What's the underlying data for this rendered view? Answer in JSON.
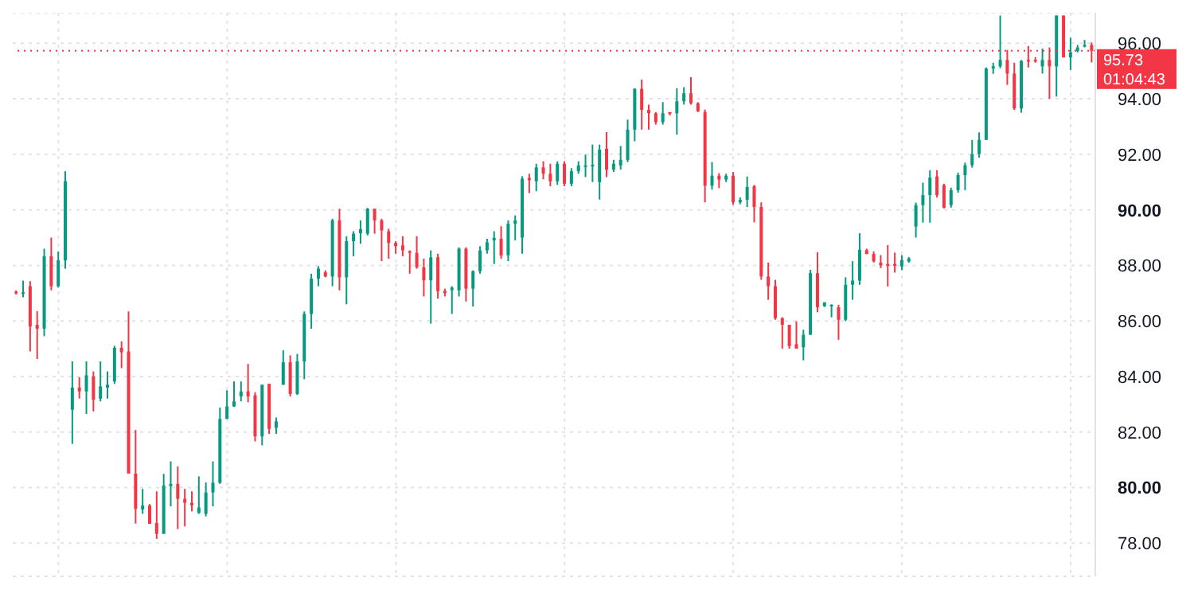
{
  "chart_data": {
    "type": "candlestick",
    "categories": [
      null,
      null,
      null,
      null,
      null,
      null,
      null,
      null,
      null,
      null,
      null,
      null,
      null,
      null,
      null,
      null,
      null,
      null,
      null,
      null,
      null,
      null,
      null,
      null,
      null,
      null,
      null,
      null,
      null,
      null,
      null,
      null,
      null,
      null,
      null,
      null,
      null,
      null,
      null,
      null,
      null,
      null,
      null,
      null,
      null,
      null,
      null,
      null,
      null,
      null,
      null,
      null,
      null,
      null,
      null,
      null,
      null,
      null,
      null,
      null,
      null,
      null,
      null,
      null,
      null,
      null,
      null,
      null,
      null,
      null,
      null,
      null,
      null,
      null,
      null,
      null,
      null,
      null,
      null,
      null,
      null,
      null,
      null,
      null,
      null,
      null,
      null,
      null,
      null,
      null,
      null,
      null,
      null,
      null,
      null,
      null,
      null,
      null,
      null,
      null,
      null,
      null,
      null,
      null,
      null,
      null,
      null,
      null,
      null,
      null,
      null,
      null,
      null,
      null,
      null,
      null,
      null,
      null,
      null,
      null,
      null,
      null,
      null,
      null,
      null,
      null,
      null,
      null,
      null,
      null,
      null,
      null,
      null,
      null,
      null,
      null,
      null,
      null,
      null,
      null,
      null,
      null,
      null,
      null,
      null,
      null,
      null,
      null,
      null,
      null,
      null,
      null,
      null,
      null
    ],
    "ohlc": [
      [
        87.05,
        87.1,
        86.95,
        87.0
      ],
      [
        86.97,
        87.45,
        86.85,
        87.03
      ],
      [
        87.25,
        87.43,
        84.9,
        85.8
      ],
      [
        85.86,
        86.35,
        84.63,
        85.72
      ],
      [
        85.72,
        88.6,
        85.45,
        88.33
      ],
      [
        88.33,
        89.0,
        87.1,
        87.25
      ],
      [
        87.25,
        88.5,
        87.2,
        88.18
      ],
      [
        88.18,
        91.39,
        87.88,
        91.03
      ],
      [
        82.8,
        84.54,
        81.57,
        83.6
      ],
      [
        83.6,
        83.97,
        83.2,
        83.46
      ],
      [
        83.46,
        84.54,
        82.65,
        84.04
      ],
      [
        84.0,
        84.18,
        82.74,
        83.16
      ],
      [
        83.2,
        84.54,
        83.1,
        83.64
      ],
      [
        83.6,
        84.18,
        83.2,
        83.7
      ],
      [
        83.82,
        85.1,
        83.73,
        85.03
      ],
      [
        85.03,
        85.26,
        84.3,
        84.87
      ],
      [
        84.9,
        86.34,
        80.5,
        80.5
      ],
      [
        80.5,
        82.07,
        78.7,
        79.23
      ],
      [
        79.21,
        79.95,
        79.05,
        79.35
      ],
      [
        79.35,
        79.4,
        78.69,
        78.69
      ],
      [
        78.72,
        79.86,
        78.15,
        78.33
      ],
      [
        78.33,
        80.49,
        78.33,
        80.07
      ],
      [
        80.05,
        80.94,
        79.32,
        80.13
      ],
      [
        80.13,
        80.76,
        78.5,
        79.59
      ],
      [
        79.59,
        79.95,
        78.6,
        79.45
      ],
      [
        79.45,
        79.86,
        79.14,
        79.36
      ],
      [
        79.08,
        80.4,
        79.05,
        79.28
      ],
      [
        79.05,
        80.18,
        78.96,
        79.82
      ],
      [
        79.82,
        80.94,
        79.32,
        80.17
      ],
      [
        80.17,
        82.88,
        80.13,
        82.47
      ],
      [
        82.47,
        83.5,
        82.47,
        82.92
      ],
      [
        82.92,
        83.82,
        82.9,
        83.1
      ],
      [
        83.28,
        83.82,
        83.1,
        83.46
      ],
      [
        83.46,
        84.45,
        83.07,
        83.28
      ],
      [
        83.32,
        83.43,
        81.66,
        81.84
      ],
      [
        81.84,
        83.7,
        81.52,
        83.7
      ],
      [
        83.73,
        83.73,
        81.93,
        82.11
      ],
      [
        82.15,
        82.52,
        81.93,
        82.38
      ],
      [
        83.7,
        84.94,
        83.7,
        84.51
      ],
      [
        84.51,
        84.76,
        83.28,
        83.37
      ],
      [
        83.37,
        84.81,
        83.33,
        84.54
      ],
      [
        84.54,
        86.34,
        83.9,
        86.25
      ],
      [
        86.25,
        87.7,
        85.72,
        87.52
      ],
      [
        87.52,
        87.97,
        87.25,
        87.88
      ],
      [
        87.75,
        87.82,
        87.57,
        87.6
      ],
      [
        87.6,
        89.68,
        87.25,
        89.62
      ],
      [
        89.62,
        90.04,
        87.1,
        87.57
      ],
      [
        87.57,
        89.05,
        86.6,
        88.87
      ],
      [
        88.87,
        89.23,
        88.33,
        89.14
      ],
      [
        89.16,
        89.62,
        88.78,
        89.3
      ],
      [
        89.14,
        90.07,
        89.08,
        90.04
      ],
      [
        90.04,
        90.04,
        89.14,
        89.62
      ],
      [
        89.62,
        89.68,
        88.15,
        89.26
      ],
      [
        89.23,
        89.32,
        88.24,
        88.81
      ],
      [
        88.81,
        88.87,
        88.42,
        88.69
      ],
      [
        88.72,
        89.05,
        88.33,
        88.54
      ],
      [
        88.51,
        88.54,
        87.7,
        88.45
      ],
      [
        88.45,
        89.05,
        87.88,
        87.93
      ],
      [
        87.93,
        88.24,
        86.88,
        87.46
      ],
      [
        87.46,
        88.54,
        85.9,
        88.29
      ],
      [
        88.29,
        88.42,
        86.8,
        87.07
      ],
      [
        87.08,
        87.16,
        86.88,
        87.0
      ],
      [
        87.1,
        87.25,
        86.25,
        87.2
      ],
      [
        87.1,
        88.65,
        86.88,
        88.6
      ],
      [
        88.6,
        88.65,
        86.7,
        87.16
      ],
      [
        87.16,
        87.82,
        86.52,
        87.79
      ],
      [
        87.79,
        88.69,
        87.7,
        88.54
      ],
      [
        88.54,
        88.96,
        88.42,
        88.83
      ],
      [
        88.9,
        89.23,
        88.05,
        88.99
      ],
      [
        88.96,
        89.41,
        88.24,
        88.36
      ],
      [
        88.36,
        89.62,
        88.15,
        89.5
      ],
      [
        89.5,
        89.8,
        88.9,
        89.62
      ],
      [
        89.0,
        91.21,
        88.42,
        91.12
      ],
      [
        91.15,
        91.3,
        90.6,
        91.07
      ],
      [
        91.03,
        91.66,
        90.67,
        91.53
      ],
      [
        91.53,
        91.75,
        91.1,
        91.3
      ],
      [
        91.3,
        91.66,
        90.85,
        91.03
      ],
      [
        91.03,
        91.75,
        90.9,
        91.66
      ],
      [
        91.66,
        91.75,
        90.85,
        90.94
      ],
      [
        90.94,
        91.5,
        90.85,
        91.39
      ],
      [
        91.39,
        91.75,
        91.3,
        91.6
      ],
      [
        91.55,
        91.99,
        91.18,
        91.6
      ],
      [
        91.57,
        92.35,
        91.0,
        91.62
      ],
      [
        91.0,
        92.35,
        90.37,
        92.17
      ],
      [
        92.2,
        92.8,
        91.18,
        91.45
      ],
      [
        91.45,
        91.8,
        91.36,
        91.66
      ],
      [
        91.6,
        92.3,
        91.45,
        91.8
      ],
      [
        91.8,
        93.25,
        91.72,
        92.89
      ],
      [
        92.89,
        94.38,
        92.47,
        94.36
      ],
      [
        94.36,
        94.69,
        92.89,
        93.6
      ],
      [
        93.6,
        93.79,
        92.89,
        93.48
      ],
      [
        93.48,
        93.52,
        93.07,
        93.16
      ],
      [
        93.16,
        93.88,
        93.07,
        93.48
      ],
      [
        93.52,
        93.52,
        93.4,
        93.46
      ],
      [
        93.48,
        94.38,
        92.71,
        93.91
      ],
      [
        93.91,
        94.42,
        93.79,
        94.2
      ],
      [
        94.2,
        94.78,
        93.79,
        93.84
      ],
      [
        93.84,
        93.88,
        93.52,
        93.55
      ],
      [
        93.52,
        93.61,
        90.27,
        90.87
      ],
      [
        90.87,
        91.72,
        90.73,
        91.23
      ],
      [
        91.23,
        91.32,
        90.78,
        91.09
      ],
      [
        91.09,
        91.3,
        91.0,
        91.23
      ],
      [
        91.23,
        91.36,
        90.18,
        90.27
      ],
      [
        90.27,
        90.45,
        90.2,
        90.36
      ],
      [
        90.36,
        91.2,
        90.1,
        90.82
      ],
      [
        90.85,
        90.9,
        89.55,
        90.1
      ],
      [
        90.1,
        90.27,
        87.48,
        87.6
      ],
      [
        87.6,
        88.1,
        86.76,
        87.25
      ],
      [
        87.25,
        87.48,
        86.04,
        86.1
      ],
      [
        86.1,
        86.13,
        85.0,
        85.86
      ],
      [
        85.86,
        85.86,
        85.0,
        85.09
      ],
      [
        85.16,
        85.99,
        85.0,
        85.0
      ],
      [
        85.05,
        85.68,
        84.58,
        85.5
      ],
      [
        85.5,
        87.84,
        85.5,
        87.72
      ],
      [
        87.72,
        88.47,
        86.31,
        86.49
      ],
      [
        86.53,
        86.67,
        86.5,
        86.67
      ],
      [
        86.53,
        86.6,
        86.13,
        86.58
      ],
      [
        86.49,
        86.58,
        85.32,
        86.04
      ],
      [
        86.04,
        87.57,
        85.99,
        87.3
      ],
      [
        87.3,
        88.15,
        86.76,
        87.45
      ],
      [
        87.45,
        89.16,
        87.3,
        88.56
      ],
      [
        88.55,
        88.6,
        88.4,
        88.41
      ],
      [
        88.41,
        88.5,
        88.1,
        88.15
      ],
      [
        88.1,
        88.37,
        87.9,
        88.0
      ],
      [
        88.05,
        88.73,
        87.24,
        87.98
      ],
      [
        88.05,
        88.46,
        87.74,
        87.98
      ],
      [
        87.96,
        88.37,
        87.83,
        88.19
      ],
      [
        88.14,
        88.3,
        88.1,
        88.25
      ],
      [
        89.4,
        90.26,
        89.0,
        90.17
      ],
      [
        90.17,
        90.98,
        89.54,
        90.53
      ],
      [
        90.53,
        91.43,
        89.54,
        91.16
      ],
      [
        91.2,
        91.43,
        90.44,
        90.53
      ],
      [
        90.89,
        90.94,
        90.05,
        90.08
      ],
      [
        90.17,
        90.8,
        90.08,
        90.71
      ],
      [
        90.71,
        91.34,
        90.62,
        91.25
      ],
      [
        91.25,
        91.7,
        90.71,
        91.61
      ],
      [
        91.61,
        92.52,
        91.52,
        92.01
      ],
      [
        92.01,
        92.79,
        91.88,
        92.52
      ],
      [
        92.52,
        95.13,
        92.52,
        95.09
      ],
      [
        95.09,
        95.3,
        94.9,
        95.17
      ],
      [
        95.17,
        97.0,
        95.1,
        95.4
      ],
      [
        95.4,
        95.76,
        94.5,
        94.91
      ],
      [
        94.91,
        95.3,
        93.6,
        93.65
      ],
      [
        93.65,
        95.4,
        93.5,
        95.36
      ],
      [
        95.4,
        95.9,
        95.13,
        95.36
      ],
      [
        95.4,
        95.5,
        95.3,
        95.36
      ],
      [
        95.17,
        95.81,
        94.91,
        95.4
      ],
      [
        95.4,
        95.85,
        94.0,
        95.17
      ],
      [
        95.17,
        97.0,
        94.08,
        97.0
      ],
      [
        97.0,
        97.0,
        95.49,
        95.49
      ],
      [
        95.49,
        96.2,
        95.04,
        95.67
      ],
      [
        95.72,
        95.94,
        95.67,
        95.85
      ],
      [
        95.89,
        96.12,
        95.85,
        95.94
      ],
      [
        95.94,
        96.03,
        95.31,
        95.73
      ]
    ],
    "colors": [
      "#f23645",
      "#089981",
      "#f23645",
      "#f23645",
      "#089981",
      "#f23645",
      "#089981",
      "#089981",
      "#089981",
      "#f23645",
      "#089981",
      "#f23645",
      "#089981",
      "#089981",
      "#089981",
      "#f23645",
      "#f23645",
      "#f23645",
      "#089981",
      "#f23645",
      "#f23645",
      "#089981",
      "#089981",
      "#f23645",
      "#f23645",
      "#f23645",
      "#089981",
      "#089981",
      "#089981",
      "#089981",
      "#089981",
      "#089981",
      "#089981",
      "#f23645",
      "#f23645",
      "#089981",
      "#f23645",
      "#089981",
      "#089981",
      "#f23645",
      "#089981",
      "#089981",
      "#089981",
      "#089981",
      "#f23645",
      "#089981",
      "#f23645",
      "#089981",
      "#089981",
      "#089981",
      "#089981",
      "#f23645",
      "#f23645",
      "#f23645",
      "#f23645",
      "#f23645",
      "#f23645",
      "#f23645",
      "#f23645",
      "#089981",
      "#f23645",
      "#f23645",
      "#089981",
      "#089981",
      "#f23645",
      "#089981",
      "#089981",
      "#089981",
      "#089981",
      "#f23645",
      "#089981",
      "#089981",
      "#089981",
      "#f23645",
      "#089981",
      "#f23645",
      "#f23645",
      "#089981",
      "#f23645",
      "#089981",
      "#089981",
      "#089981",
      "#089981",
      "#089981",
      "#f23645",
      "#089981",
      "#089981",
      "#089981",
      "#089981",
      "#f23645",
      "#f23645",
      "#f23645",
      "#089981",
      "#f23645",
      "#089981",
      "#089981",
      "#f23645",
      "#f23645",
      "#f23645",
      "#089981",
      "#f23645",
      "#089981",
      "#f23645",
      "#089981",
      "#089981",
      "#f23645",
      "#f23645",
      "#f23645",
      "#f23645",
      "#f23645",
      "#f23645",
      "#f23645",
      "#089981",
      "#089981",
      "#f23645",
      "#089981",
      "#089981",
      "#f23645",
      "#089981",
      "#089981",
      "#089981",
      "#f23645",
      "#f23645",
      "#f23645",
      "#f23645",
      "#f23645",
      "#089981",
      "#089981",
      "#089981",
      "#089981",
      "#089981",
      "#f23645",
      "#f23645",
      "#089981",
      "#089981",
      "#089981",
      "#089981",
      "#089981",
      "#089981",
      "#089981",
      "#089981",
      "#f23645",
      "#f23645",
      "#089981",
      "#f23645",
      "#f23645",
      "#089981",
      "#f23645",
      "#089981",
      "#f23645",
      "#089981",
      "#089981",
      "#089981",
      "#f23645"
    ],
    "ylim": [
      76.8,
      97.1
    ],
    "yticks": [
      {
        "value": 78,
        "label": "78.00"
      },
      {
        "value": 80,
        "label": "80.00"
      },
      {
        "value": 82,
        "label": "82.00"
      },
      {
        "value": 84,
        "label": "84.00"
      },
      {
        "value": 86,
        "label": "86.00"
      },
      {
        "value": 88,
        "label": "88.00"
      },
      {
        "value": 90,
        "label": "90.00"
      },
      {
        "value": 92,
        "label": "92.00"
      },
      {
        "value": 94,
        "label": "94.00"
      },
      {
        "value": 96,
        "label": "96.00"
      }
    ],
    "ref_lines": [
      {
        "axis": "y",
        "value": 95.73,
        "label": "95.73",
        "color": "#f23645",
        "line_style": "dotted"
      }
    ],
    "annotations": [
      "01:04:43"
    ],
    "grid": true,
    "tick_labels": "y"
  }
}
